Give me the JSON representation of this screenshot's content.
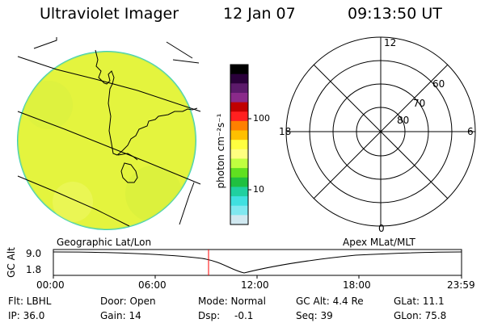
{
  "header": {
    "title": "Ultraviolet Imager",
    "date": "12 Jan 07",
    "time": "09:13:50 UT"
  },
  "colorbar": {
    "unit_label": "photon cm⁻²s⁻¹",
    "ticks": [
      "100",
      "10"
    ],
    "colors": [
      "#000000",
      "#2a003a",
      "#5c1a6b",
      "#8a2a8a",
      "#c00000",
      "#ff2020",
      "#ff8000",
      "#ffc000",
      "#ffff40",
      "#ffff80",
      "#c0ff40",
      "#60e020",
      "#20c040",
      "#20d0a0",
      "#40e0e0",
      "#80e8f0",
      "#d0e8f0"
    ]
  },
  "polar_plot": {
    "mlt_labels": {
      "top": "12",
      "left": "18",
      "right": "6",
      "bottom": "0"
    },
    "lat_labels": [
      "60",
      "70",
      "80"
    ]
  },
  "timeline": {
    "left_title": "Geographic Lat/Lon",
    "right_title": "Apex MLat/MLT",
    "y_axis_label": "GC Alt",
    "y_ticks": [
      "9.0",
      "1.8"
    ],
    "x_ticks": [
      "00:00",
      "06:00",
      "12:00",
      "18:00",
      "23:59"
    ],
    "marker_color": "#ff0000"
  },
  "info": {
    "flt": "Flt: LBHL",
    "ip": "IP: 36.0",
    "door": "Door: Open",
    "gain": "Gain: 14",
    "mode": "Mode: Normal",
    "dsp": "Dsp:",
    "dsp_value": "-0.1",
    "gc_alt": "GC Alt: 4.4 Re",
    "seq": "Seq: 39",
    "glat": "GLat: 11.1",
    "glon": "GLon: 75.8"
  },
  "colors": {
    "image_fill": "#e6f53c",
    "image_edge": "#3ecfb8",
    "coast": "#000000"
  }
}
